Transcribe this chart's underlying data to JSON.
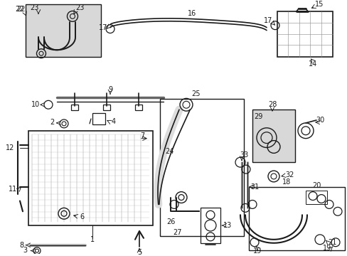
{
  "bg_color": "#ffffff",
  "lc": "#1a1a1a",
  "gray_fill": "#d8d8d8",
  "figsize": [
    4.89,
    3.6
  ],
  "dpi": 100
}
